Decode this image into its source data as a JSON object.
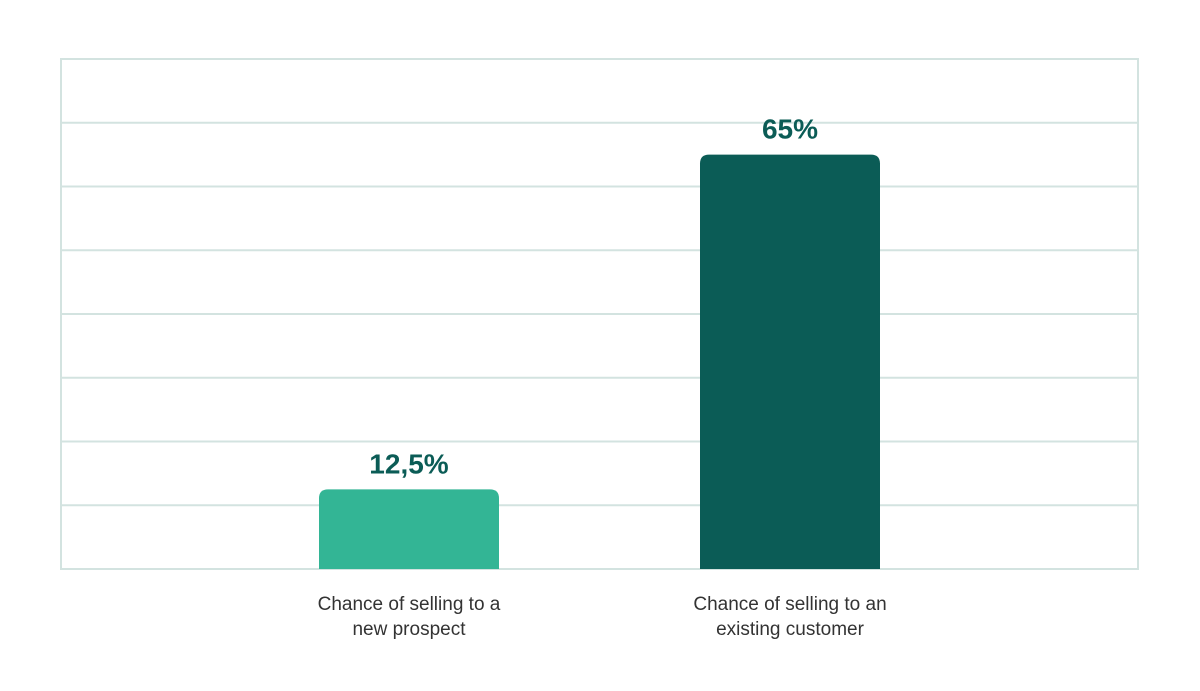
{
  "chart_data": {
    "type": "bar",
    "categories": [
      [
        "Chance of selling to a",
        "new prospect"
      ],
      [
        "Chance of selling to an",
        "existing customer"
      ]
    ],
    "values": [
      12.5,
      65
    ],
    "value_labels": [
      "12,5%",
      "65%"
    ],
    "bar_colors": [
      "#33b595",
      "#0b5c56"
    ],
    "label_color": "#0b5c56",
    "gridline_color": "#d3e3e0",
    "grid": true,
    "ylim": [
      0,
      80
    ],
    "y_grid_step": 10,
    "title": "",
    "xlabel": "",
    "ylabel": ""
  }
}
